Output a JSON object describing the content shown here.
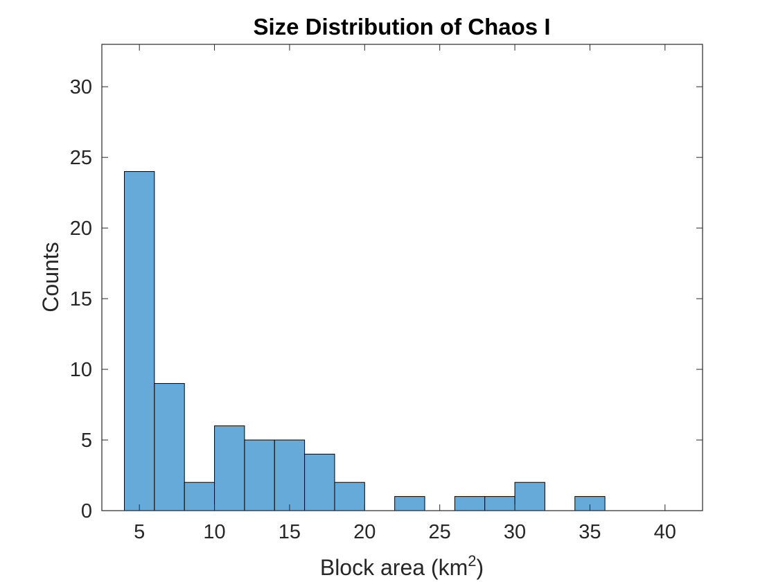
{
  "chart_data": {
    "type": "bar",
    "subtype": "histogram",
    "title": "Size Distribution of Chaos I",
    "xlabel": "Block area (km",
    "xlabel_superscript": "2",
    "xlabel_suffix": ")",
    "ylabel": "Counts",
    "xlim": [
      2.5,
      42.5
    ],
    "ylim": [
      0,
      33
    ],
    "xticks": [
      5,
      10,
      15,
      20,
      25,
      30,
      35,
      40
    ],
    "yticks": [
      0,
      5,
      10,
      15,
      20,
      25,
      30
    ],
    "xtick_labels": [
      "5",
      "10",
      "15",
      "20",
      "25",
      "30",
      "35",
      "40"
    ],
    "ytick_labels": [
      "0",
      "5",
      "10",
      "15",
      "20",
      "25",
      "30"
    ],
    "bin_edges": [
      4,
      6,
      8,
      10,
      12,
      14,
      16,
      18,
      20,
      22,
      24,
      26,
      28,
      30,
      32,
      34,
      36,
      38,
      40
    ],
    "values": [
      24,
      9,
      2,
      6,
      5,
      5,
      4,
      2,
      0,
      1,
      0,
      1,
      1,
      2,
      0,
      1,
      0,
      0
    ],
    "bar_color": "#66AADA",
    "edge_color": "#000000",
    "grid": false,
    "box": true
  }
}
